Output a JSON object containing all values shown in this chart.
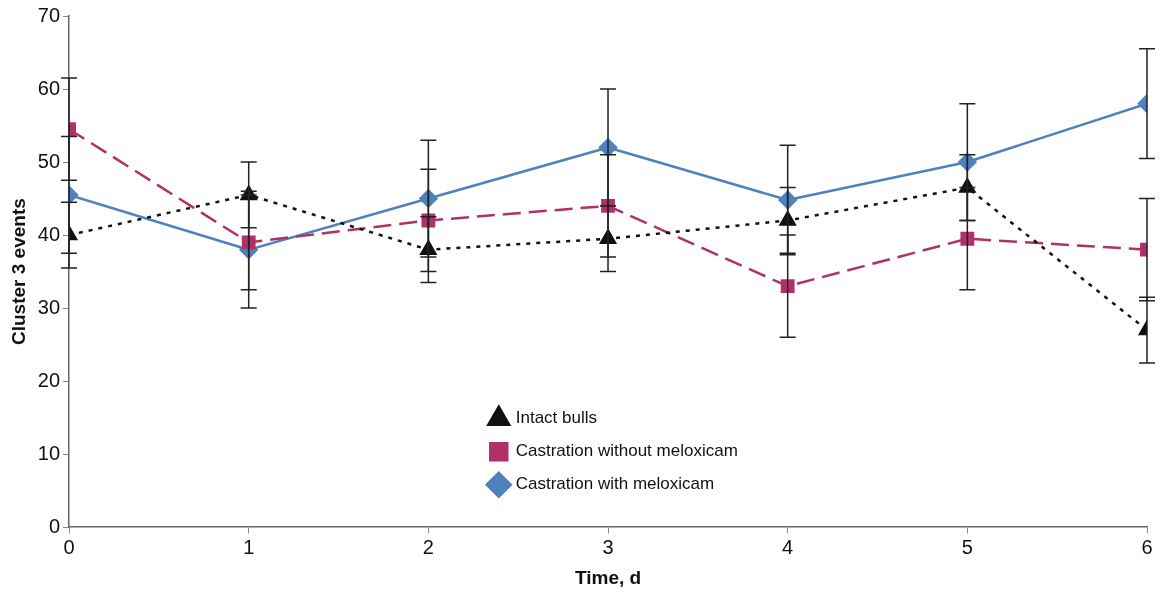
{
  "chart_data": {
    "type": "line",
    "xlabel": "Time, d",
    "ylabel": "Cluster 3 events",
    "x": [
      0,
      1,
      2,
      3,
      4,
      5,
      6
    ],
    "xlim": [
      0,
      6
    ],
    "xticks": [
      0,
      1,
      2,
      3,
      4,
      5,
      6
    ],
    "ylim": [
      0,
      70
    ],
    "yticks": [
      0,
      10,
      20,
      30,
      40,
      50,
      60,
      70
    ],
    "grid": false,
    "legend": "bottom",
    "series": [
      {
        "name": "Castration with meloxicam",
        "color": "#4f81bd",
        "marker": "diamond",
        "line_style": "solid",
        "values": [
          45.5,
          38,
          45,
          52,
          44.8,
          50,
          58
        ],
        "errors": [
          8,
          8,
          8,
          8,
          7.5,
          8,
          7.5
        ]
      },
      {
        "name": "Castration without meloxicam",
        "color": "#b0306a",
        "marker": "square",
        "line_style": "dashed",
        "values": [
          54.5,
          39,
          42,
          44,
          33,
          39.5,
          38
        ],
        "errors": [
          7,
          6.5,
          7,
          7,
          7,
          7,
          7
        ]
      },
      {
        "name": "Intact bulls",
        "color": "#111111",
        "marker": "triangle",
        "line_style": "dotted",
        "values": [
          40,
          45.5,
          38,
          39.5,
          42,
          46.5,
          27
        ],
        "errors": [
          4.5,
          4.5,
          4.5,
          4.5,
          4.5,
          4.5,
          4.5
        ]
      }
    ]
  }
}
